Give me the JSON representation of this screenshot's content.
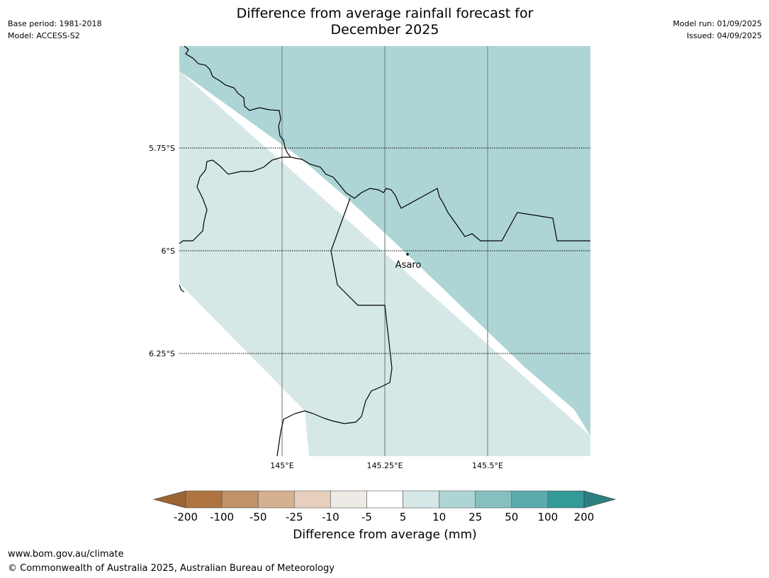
{
  "header": {
    "title_line1": "Difference from average rainfall forecast for",
    "title_line2": "December 2025",
    "base_period": "Base period: 1981-2018",
    "model": "Model: ACCESS-S2",
    "model_run": "Model run: 01/09/2025",
    "issued": "Issued: 04/09/2025"
  },
  "map": {
    "lat_labels": [
      "5.75°S",
      "6°S",
      "6.25°S"
    ],
    "lon_labels": [
      "145°E",
      "145.25°E",
      "145.5°E"
    ],
    "place": "Asaro",
    "colors": {
      "band_5_10": "#d5e8e7",
      "band_10_25": "#aed5d5",
      "no_change": "#ffffff"
    }
  },
  "colorbar": {
    "ticks": [
      "-200",
      "-100",
      "-50",
      "-25",
      "-10",
      "-5",
      "5",
      "10",
      "25",
      "50",
      "100",
      "200"
    ],
    "colors": [
      "#9a6434",
      "#ad7441",
      "#c19268",
      "#d4b191",
      "#e6d0bd",
      "#eeeae6",
      "#ffffff",
      "#d5e8e7",
      "#aed5d5",
      "#85c0bf",
      "#5aacac",
      "#349a98",
      "#2d7f7f"
    ],
    "title": "Difference from average (mm)"
  },
  "footer": {
    "url": "www.bom.gov.au/climate",
    "copyright": "© Commonwealth of Australia 2025, Australian Bureau of Meteorology"
  }
}
